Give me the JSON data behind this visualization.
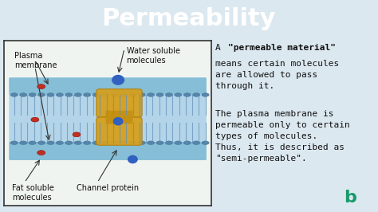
{
  "title": "Permeability",
  "title_bg": "#4a90c4",
  "title_color": "#ffffff",
  "bg_color": "#dce8f0",
  "panel_bg": "#ffffff",
  "text_right_1_plain": "A ",
  "text_right_1_bold": "\"permeable material\"",
  "text_right_2": "means certain molecules\nare allowed to pass\nthrough it.",
  "text_right_3": "The plasma membrane is\npermeable only to certain\ntypes of molecules.\nThus, it is described as\n\"semi-permeable\".",
  "label_plasma": "Plasma\nmembrane",
  "label_water": "Water soluble\nmolecules",
  "label_fat": "Fat soluble\nmolecules",
  "label_channel": "Channel protein",
  "membrane_top_color": "#7ab8d8",
  "membrane_mid_color": "#5a9abf",
  "membrane_inner_color": "#c8dff0",
  "protein_color": "#d4a020",
  "water_mol_color": "#3060c0",
  "fat_mol_color": "#c03020",
  "font_size_title": 22,
  "font_size_text": 8,
  "font_size_label": 7
}
